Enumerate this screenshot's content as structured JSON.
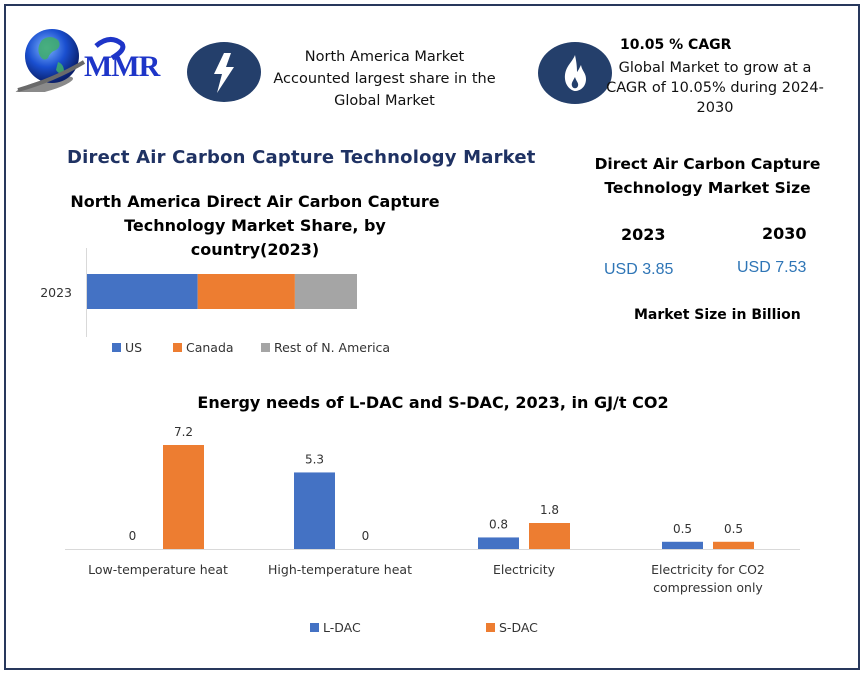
{
  "brand": {
    "logo_text": "MMR"
  },
  "header": {
    "highlight_left": {
      "icon": "lightning-bolt-icon",
      "lines": [
        "North America Market",
        "Accounted largest share in the",
        "Global Market"
      ]
    },
    "highlight_right": {
      "icon": "flame-icon",
      "title": "10.05 % CAGR",
      "lines": [
        "Global Market to grow at a",
        "CAGR of 10.05% during 2024-",
        "2030"
      ]
    }
  },
  "main_title": "Direct Air Carbon Capture Technology Market",
  "market_size": {
    "title_lines": [
      "Direct Air Carbon Capture",
      "Technology Market Size"
    ],
    "years": [
      {
        "year": "2023",
        "value": "USD 3.85"
      },
      {
        "year": "2030",
        "value": "USD 7.53"
      }
    ],
    "note": "Market Size in Billion"
  },
  "colors": {
    "frame": "#28385c",
    "icon_bg": "#243f6b",
    "title_blue": "#1f3263",
    "value_blue": "#2e75b6",
    "series_blue": "#4472c4",
    "series_orange": "#ed7d31",
    "series_gray": "#a5a5a5"
  },
  "chart_data": [
    {
      "type": "bar",
      "orientation": "horizontal-stacked",
      "title_lines": [
        "North America Direct Air Carbon Capture",
        "Technology Market Share, by",
        "country(2023)"
      ],
      "categories": [
        "2023"
      ],
      "series": [
        {
          "name": "US",
          "values": [
            41
          ],
          "color": "#4472c4"
        },
        {
          "name": "Canada",
          "values": [
            36
          ],
          "color": "#ed7d31"
        },
        {
          "name": "Rest of N. America",
          "values": [
            23
          ],
          "color": "#a5a5a5"
        }
      ],
      "unit": "percent share (estimated)",
      "legend": "bottom"
    },
    {
      "type": "bar",
      "title": "Energy needs of L-DAC and S-DAC, 2023, in GJ/t CO2",
      "categories": [
        "Low-temperature heat",
        "High-temperature heat",
        "Electricity",
        "Electricity for CO2 compression only"
      ],
      "category_label_lines": [
        [
          "Low-temperature heat"
        ],
        [
          "High-temperature heat"
        ],
        [
          "Electricity"
        ],
        [
          "Electricity for CO2",
          "compression only"
        ]
      ],
      "series": [
        {
          "name": "L-DAC",
          "values": [
            0,
            5.3,
            0.8,
            0.5
          ],
          "labels": [
            "0",
            "5.3",
            "0.8",
            "0.5"
          ],
          "color": "#4472c4"
        },
        {
          "name": "S-DAC",
          "values": [
            7.2,
            0,
            1.8,
            0.5
          ],
          "labels": [
            "7.2",
            "0",
            "1.8",
            "0.5"
          ],
          "color": "#ed7d31"
        }
      ],
      "ylim": [
        0,
        7.2
      ],
      "grid": false,
      "legend": "bottom"
    }
  ]
}
